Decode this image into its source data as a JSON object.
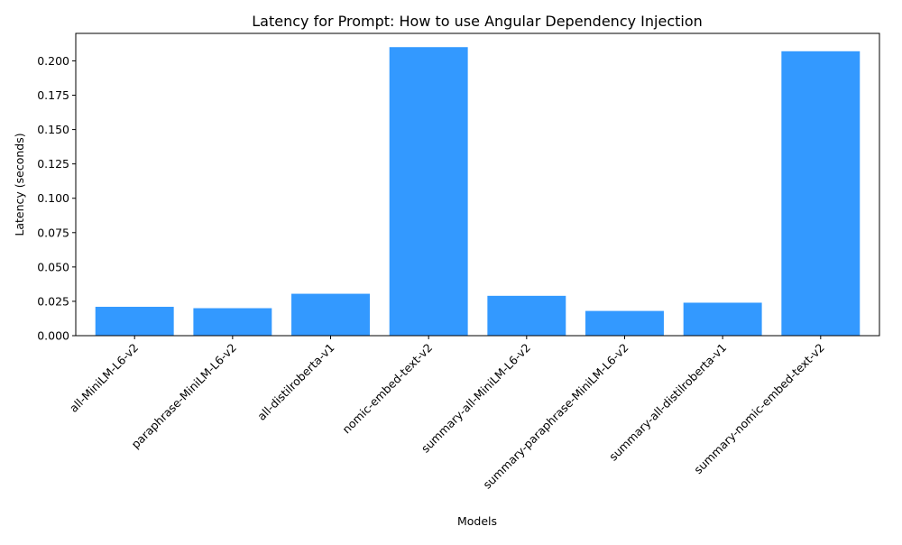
{
  "chart_data": {
    "type": "bar",
    "title": "Latency for Prompt: How to use Angular Dependency Injection",
    "xlabel": "Models",
    "ylabel": "Latency (seconds)",
    "categories": [
      "all-MiniLM-L6-v2",
      "paraphrase-MiniLM-L6-v2",
      "all-distilroberta-v1",
      "nomic-embed-text-v2",
      "summary-all-MiniLM-L6-v2",
      "summary-paraphrase-MiniLM-L6-v2",
      "summary-all-distilroberta-v1",
      "summary-nomic-embed-text-v2"
    ],
    "values": [
      0.021,
      0.02,
      0.0305,
      0.21,
      0.029,
      0.018,
      0.024,
      0.207
    ],
    "ylim": [
      0,
      0.22
    ],
    "yticks": [
      "0.000",
      "0.025",
      "0.050",
      "0.075",
      "0.100",
      "0.125",
      "0.150",
      "0.175",
      "0.200"
    ],
    "grid": false,
    "legend": "none",
    "colors": {
      "bar": "#3399ff",
      "axis": "#000000"
    }
  }
}
